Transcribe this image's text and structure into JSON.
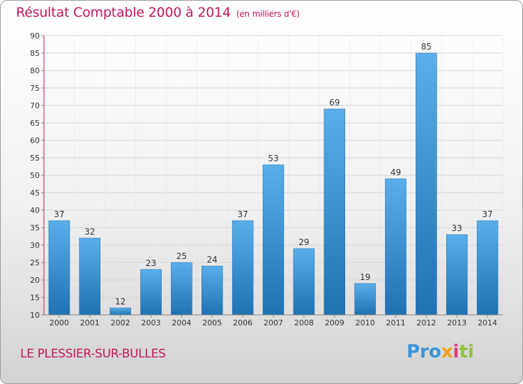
{
  "chart_data": {
    "type": "bar",
    "title": "Résultat Comptable 2000 à 2014",
    "unit": "(en milliers d'€)",
    "categories": [
      "2000",
      "2001",
      "2002",
      "2003",
      "2004",
      "2005",
      "2006",
      "2007",
      "2008",
      "2009",
      "2010",
      "2011",
      "2012",
      "2013",
      "2014"
    ],
    "values": [
      37,
      32,
      12,
      23,
      25,
      24,
      37,
      53,
      29,
      69,
      19,
      49,
      85,
      33,
      37
    ],
    "ylim": [
      10,
      90
    ],
    "yticks": [
      10,
      15,
      20,
      25,
      30,
      35,
      40,
      45,
      50,
      55,
      60,
      65,
      70,
      75,
      80,
      85,
      90
    ],
    "xlabel": "",
    "ylabel": "",
    "grid": true
  },
  "place": "LE PLESSIER-SUR-BULLES",
  "logo": {
    "p1": "Pro",
    "p2": "x",
    "p3": "i",
    "p4": "ti"
  },
  "colors": {
    "accent": "#c0175d",
    "bar_top": "#5aaeea",
    "bar_bottom": "#1f72b2"
  }
}
